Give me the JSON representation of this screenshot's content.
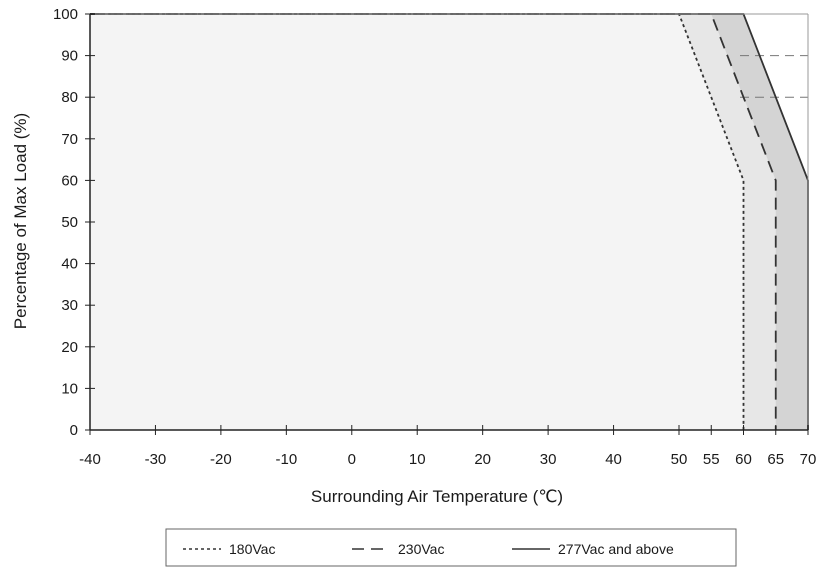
{
  "chart_data": {
    "type": "line",
    "xlabel": "Surrounding Air Temperature (℃)",
    "ylabel": "Percentage of Max Load (%)",
    "xlim": [
      -40,
      70
    ],
    "ylim": [
      0,
      100
    ],
    "x_ticks": [
      -40,
      -30,
      -20,
      -10,
      0,
      10,
      20,
      30,
      40,
      50,
      55,
      60,
      65,
      70
    ],
    "y_ticks": [
      0,
      10,
      20,
      30,
      40,
      50,
      60,
      70,
      80,
      90,
      100
    ],
    "x_scale": "piecewise linear (10°C steps to 50, 5°C steps from 50 to 70)",
    "grid": "major gridlines at y=80 and y=90 (dashed, right portion only)",
    "legend_position": "bottom",
    "series": [
      {
        "name": "180Vac",
        "style": "dotted",
        "color": "#333333",
        "fill": "#f4f4f4",
        "points": [
          [
            -40,
            100
          ],
          [
            50,
            100
          ],
          [
            60,
            60
          ],
          [
            60,
            0
          ]
        ]
      },
      {
        "name": "230Vac",
        "style": "dashed",
        "color": "#333333",
        "fill": "#e7e7e7",
        "points": [
          [
            -40,
            100
          ],
          [
            55,
            100
          ],
          [
            65,
            60
          ],
          [
            65,
            0
          ]
        ]
      },
      {
        "name": "277Vac and above",
        "style": "solid",
        "color": "#333333",
        "fill": "#d4d4d4",
        "points": [
          [
            -40,
            100
          ],
          [
            60,
            100
          ],
          [
            70,
            60
          ],
          [
            70,
            0
          ]
        ]
      }
    ]
  }
}
